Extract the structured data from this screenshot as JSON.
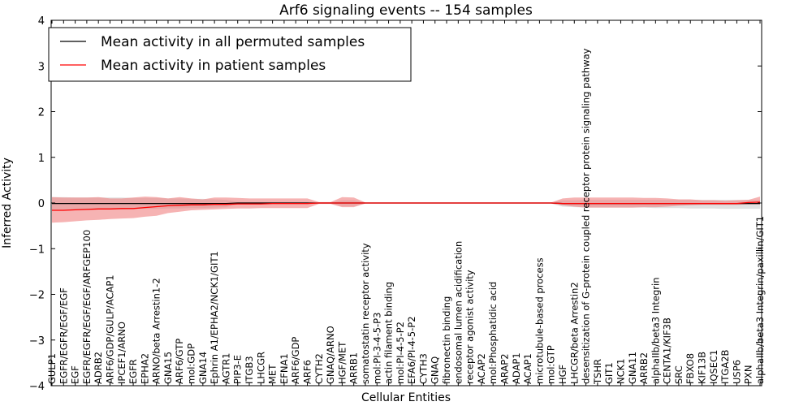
{
  "chart_data": {
    "type": "line",
    "title": "Arf6 signaling events -- 154 samples",
    "xlabel": "Cellular Entities",
    "ylabel": "Inferred Activity",
    "ylim": [
      -4,
      4
    ],
    "yticks": [
      -4,
      -3,
      -2,
      -1,
      0,
      1,
      2,
      3,
      4
    ],
    "ytick_labels": [
      "−4",
      "−3",
      "−2",
      "−1",
      "0",
      "1",
      "2",
      "3",
      "4"
    ],
    "grid": false,
    "legend_position": "top-left",
    "colors": {
      "permuted": "#000000",
      "patient": "#ff0000",
      "permuted_band": "#c8c8c8",
      "patient_band": "#f08080"
    },
    "categories": [
      "GULP1",
      "EGFR/EGFR/EGF/EGF",
      "EGF",
      "EGFR/EGFR/EGF/EGF/ARFGEP100",
      "ADRB2",
      "ARF6/GDP/GULP/ACAP1",
      "IPCEF1/ARNO",
      "EGFR",
      "EPHA2",
      "ARNO/beta Arrestin1-2",
      "GNA15",
      "ARF6/GTP",
      "mol:GDP",
      "GNA14",
      "Ephrin A1/EPHA2/NCK1/GIT1",
      "AGTR1",
      "PIP3-E",
      "ITGB3",
      "LHCGR",
      "MET",
      "EFNA1",
      "ARF6/GDP",
      "ARF6",
      "CYTH2",
      "GNAQ/ARNO",
      "HGF/MET",
      "ARRB1",
      "somatostatin receptor activity",
      "mol:PI-3-4-5-P3",
      "actin filament binding",
      "mol:PI-4-5-P2",
      "EFA6/PI-4-5-P2",
      "CYTH3",
      "GNAQ",
      "fibronectin binding",
      "endosomal lumen acidification",
      "receptor agonist activity",
      "ACAP2",
      "mol:Phosphatidic acid",
      "ARAP2",
      "ADAP1",
      "ACAP1",
      "microtubule-based process",
      "mol:GTP",
      "HGF",
      "LHCGR/beta Arrestin2",
      "desensitization of G-protein coupled receptor protein signaling pathway",
      "TSHR",
      "GIT1",
      "NCK1",
      "GNA11",
      "ARRB2",
      "alphaIIb/beta3 Integrin",
      "CENTA1/KIF3B",
      "SRC",
      "FBXO8",
      "KIF13B",
      "IQSEC1",
      "ITGA2B",
      "USP6",
      "PXN",
      "alphaIIb/beta3 Integrin/paxillin/GIT1"
    ],
    "series": [
      {
        "name": "Mean activity in all permuted samples",
        "values": [
          -0.01,
          -0.01,
          -0.01,
          -0.01,
          -0.01,
          -0.01,
          -0.01,
          -0.01,
          -0.01,
          -0.01,
          -0.01,
          -0.01,
          -0.01,
          -0.01,
          -0.01,
          -0.01,
          0,
          0,
          0,
          0,
          0,
          0,
          0,
          0,
          0,
          0,
          0,
          0,
          0,
          0,
          0,
          0,
          0,
          0,
          0,
          0,
          0,
          0,
          0,
          0,
          0,
          0,
          0,
          0,
          -0.01,
          -0.01,
          -0.01,
          -0.01,
          -0.01,
          -0.01,
          -0.01,
          -0.01,
          -0.01,
          -0.01,
          -0.01,
          -0.01,
          -0.01,
          -0.01,
          -0.01,
          -0.01,
          -0.01,
          -0.01
        ],
        "band_upper": [
          0.13,
          0.13,
          0.12,
          0.12,
          0.12,
          0.12,
          0.12,
          0.11,
          0.11,
          0.11,
          0.1,
          0.1,
          0.09,
          0.09,
          0.08,
          0.07,
          0.02,
          0.02,
          0.02,
          0.02,
          0.02,
          0.02,
          0.02,
          0.01,
          0.01,
          0.06,
          0.06,
          0.01,
          0.01,
          0.01,
          0.01,
          0.01,
          0.01,
          0.01,
          0.01,
          0.01,
          0.01,
          0.01,
          0.01,
          0.01,
          0.01,
          0.01,
          0.01,
          0.01,
          0.06,
          0.06,
          0.07,
          0.07,
          0.07,
          0.07,
          0.07,
          0.07,
          0.07,
          0.07,
          0.07,
          0.07,
          0.07,
          0.07,
          0.07,
          0.07,
          0.07,
          0.07
        ],
        "band_lower": [
          -0.15,
          -0.15,
          -0.14,
          -0.14,
          -0.14,
          -0.14,
          -0.14,
          -0.13,
          -0.13,
          -0.13,
          -0.12,
          -0.12,
          -0.11,
          -0.11,
          -0.1,
          -0.09,
          -0.03,
          -0.03,
          -0.03,
          -0.03,
          -0.03,
          -0.03,
          -0.03,
          -0.01,
          -0.01,
          -0.07,
          -0.07,
          -0.01,
          -0.01,
          -0.01,
          -0.01,
          -0.01,
          -0.01,
          -0.01,
          -0.01,
          -0.01,
          -0.01,
          -0.01,
          -0.01,
          -0.01,
          -0.01,
          -0.01,
          -0.01,
          -0.01,
          -0.08,
          -0.09,
          -0.1,
          -0.1,
          -0.1,
          -0.1,
          -0.1,
          -0.1,
          -0.11,
          -0.11,
          -0.11,
          -0.12,
          -0.12,
          -0.12,
          -0.13,
          -0.13,
          -0.13,
          -0.13
        ]
      },
      {
        "name": "Mean activity in patient samples",
        "values": [
          -0.16,
          -0.16,
          -0.15,
          -0.14,
          -0.13,
          -0.13,
          -0.12,
          -0.12,
          -0.1,
          -0.08,
          -0.06,
          -0.05,
          -0.04,
          -0.04,
          -0.03,
          -0.03,
          -0.02,
          -0.02,
          -0.02,
          -0.01,
          -0.01,
          -0.01,
          -0.01,
          0,
          0,
          0,
          0,
          0,
          0,
          0,
          0,
          0,
          0,
          0,
          0,
          0,
          0,
          0,
          0,
          0,
          0,
          0,
          0,
          0,
          -0.01,
          -0.01,
          -0.01,
          -0.01,
          -0.01,
          -0.01,
          -0.01,
          -0.01,
          -0.01,
          -0.01,
          -0.01,
          -0.01,
          -0.01,
          -0.01,
          -0.01,
          -0.01,
          0.01,
          0.02
        ],
        "band_upper": [
          0.13,
          0.12,
          0.12,
          0.12,
          0.13,
          0.1,
          0.1,
          0.12,
          0.14,
          0.13,
          0.1,
          0.13,
          0.1,
          0.08,
          0.12,
          0.12,
          0.11,
          0.1,
          0.1,
          0.1,
          0.1,
          0.1,
          0.1,
          0.02,
          0.02,
          0.13,
          0.12,
          0.01,
          0.01,
          0.01,
          0.01,
          0.01,
          0.01,
          0.01,
          0.01,
          0.01,
          0.01,
          0.01,
          0.01,
          0.01,
          0.01,
          0.01,
          0.01,
          0.01,
          0.1,
          0.12,
          0.12,
          0.12,
          0.12,
          0.12,
          0.12,
          0.11,
          0.11,
          0.1,
          0.08,
          0.08,
          0.06,
          0.06,
          0.05,
          0.06,
          0.07,
          0.14
        ],
        "band_lower": [
          -0.43,
          -0.42,
          -0.4,
          -0.38,
          -0.37,
          -0.35,
          -0.34,
          -0.33,
          -0.3,
          -0.28,
          -0.22,
          -0.19,
          -0.16,
          -0.15,
          -0.14,
          -0.13,
          -0.12,
          -0.12,
          -0.11,
          -0.11,
          -0.11,
          -0.11,
          -0.11,
          -0.02,
          -0.02,
          -0.09,
          -0.09,
          -0.01,
          -0.01,
          -0.01,
          -0.01,
          -0.01,
          -0.01,
          -0.01,
          -0.01,
          -0.01,
          -0.01,
          -0.01,
          -0.01,
          -0.01,
          -0.01,
          -0.01,
          -0.01,
          -0.01,
          -0.05,
          -0.08,
          -0.1,
          -0.1,
          -0.1,
          -0.1,
          -0.1,
          -0.09,
          -0.09,
          -0.08,
          -0.06,
          -0.05,
          -0.04,
          -0.04,
          -0.04,
          -0.04,
          -0.03,
          -0.03
        ]
      }
    ]
  }
}
